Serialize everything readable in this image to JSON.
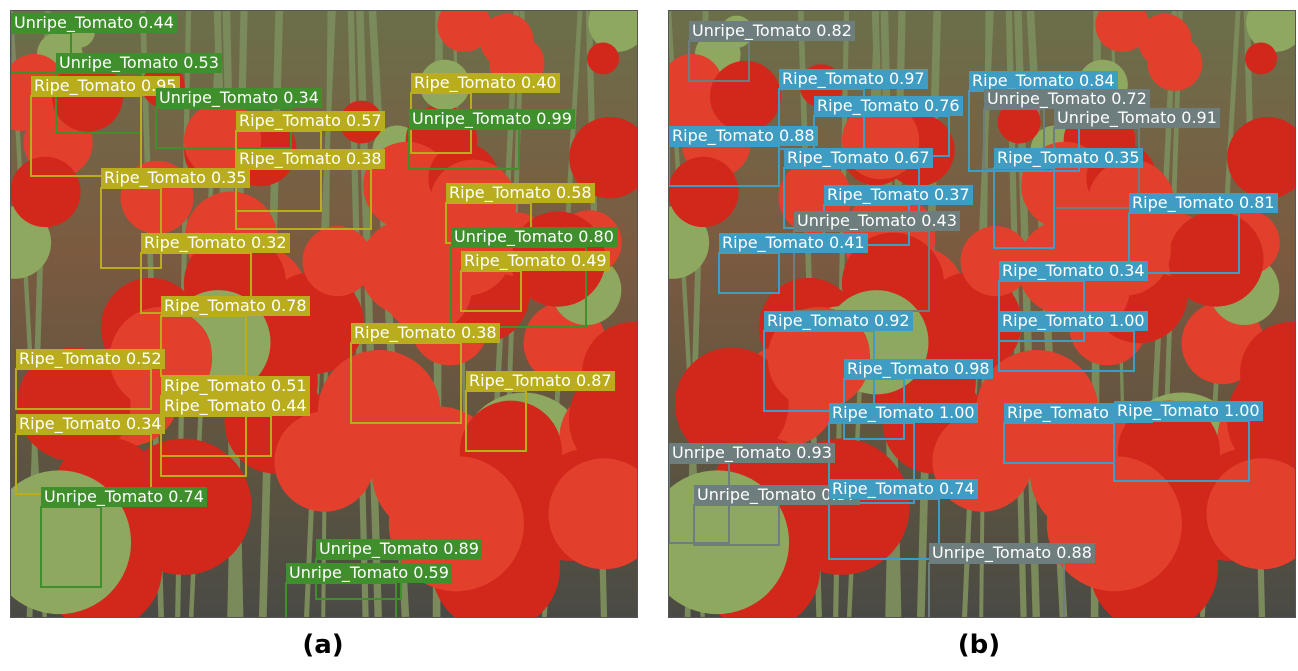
{
  "panels": [
    {
      "caption": "(a)",
      "detections": [
        {
          "text": "Unripe_Tomato 0.44",
          "color": "#3f8f2c"
        },
        {
          "text": "Unripe_Tomato 0.53",
          "color": "#3f8f2c"
        },
        {
          "text": "Ripe_Tomato 0.95",
          "color": "#b9ad1e"
        },
        {
          "text": "Unripe_Tomato 0.34",
          "color": "#3f8f2c"
        },
        {
          "text": "Ripe_Tomato 0.40",
          "color": "#b9ad1e"
        },
        {
          "text": "Ripe_Tomato 0.57",
          "color": "#b9ad1e"
        },
        {
          "text": "Unripe_Tomato 0.99",
          "color": "#3f8f2c"
        },
        {
          "text": "Ripe_Tomato 0.38",
          "color": "#b9ad1e"
        },
        {
          "text": "Ripe_Tomato 0.35",
          "color": "#b9ad1e"
        },
        {
          "text": "Ripe_Tomato 0.58",
          "color": "#b9ad1e"
        },
        {
          "text": "Ripe_Tomato 0.32",
          "color": "#b9ad1e"
        },
        {
          "text": "Unripe_Tomato 0.80",
          "color": "#3f8f2c"
        },
        {
          "text": "Ripe_Tomato 0.49",
          "color": "#b9ad1e"
        },
        {
          "text": "Ripe_Tomato 0.78",
          "color": "#b9ad1e"
        },
        {
          "text": "Ripe_Tomato 0.38",
          "color": "#b9ad1e"
        },
        {
          "text": "Ripe_Tomato 0.52",
          "color": "#b9ad1e"
        },
        {
          "text": "Ripe_Tomato 0.87",
          "color": "#b9ad1e"
        },
        {
          "text": "Ripe_Tomato 0.51",
          "color": "#b9ad1e"
        },
        {
          "text": "Ripe_Tomato 0.44",
          "color": "#b9ad1e"
        },
        {
          "text": "Ripe_Tomato 0.34",
          "color": "#b9ad1e"
        },
        {
          "text": "Unripe_Tomato 0.74",
          "color": "#3f8f2c"
        },
        {
          "text": "Unripe_Tomato 0.89",
          "color": "#3f8f2c"
        },
        {
          "text": "Unripe_Tomato 0.59",
          "color": "#3f8f2c"
        }
      ]
    },
    {
      "caption": "(b)",
      "detections": [
        {
          "text": "Unripe_Tomato 0.82",
          "color": "#6e7d7d"
        },
        {
          "text": "Ripe_Tomato 0.97",
          "color": "#3f9cc2"
        },
        {
          "text": "Ripe_Tomato 0.84",
          "color": "#3f9cc2"
        },
        {
          "text": "Ripe_Tomato 0.76",
          "color": "#3f9cc2"
        },
        {
          "text": "Unripe_Tomato 0.72",
          "color": "#6e7d7d"
        },
        {
          "text": "Unripe_Tomato 0.91",
          "color": "#6e7d7d"
        },
        {
          "text": "Ripe_Tomato 0.88",
          "color": "#3f9cc2"
        },
        {
          "text": "Ripe_Tomato 0.67",
          "color": "#3f9cc2"
        },
        {
          "text": "Ripe_Tomato 0.35",
          "color": "#3f9cc2"
        },
        {
          "text": "Ripe_Tomato 0.37",
          "color": "#3f9cc2"
        },
        {
          "text": "Ripe_Tomato 0.81",
          "color": "#3f9cc2"
        },
        {
          "text": "Unripe_Tomato 0.43",
          "color": "#6e7d7d"
        },
        {
          "text": "Ripe_Tomato 0.41",
          "color": "#3f9cc2"
        },
        {
          "text": "Ripe_Tomato 0.34",
          "color": "#3f9cc2"
        },
        {
          "text": "Ripe_Tomato 0.92",
          "color": "#3f9cc2"
        },
        {
          "text": "Ripe_Tomato 1.00",
          "color": "#3f9cc2"
        },
        {
          "text": "Ripe_Tomato 0.98",
          "color": "#3f9cc2"
        },
        {
          "text": "Ripe_Tomato 1.00",
          "color": "#3f9cc2"
        },
        {
          "text": "Ripe_Tomato 0.93",
          "color": "#3f9cc2"
        },
        {
          "text": "Ripe_Tomato 1.00",
          "color": "#3f9cc2"
        },
        {
          "text": "Unripe_Tomato 0.93",
          "color": "#6e7d7d"
        },
        {
          "text": "Unripe_Tomato 0.37",
          "color": "#6e7d7d"
        },
        {
          "text": "Ripe_Tomato 0.74",
          "color": "#3f9cc2"
        },
        {
          "text": "Unripe_Tomato 0.88",
          "color": "#6e7d7d"
        }
      ]
    }
  ]
}
